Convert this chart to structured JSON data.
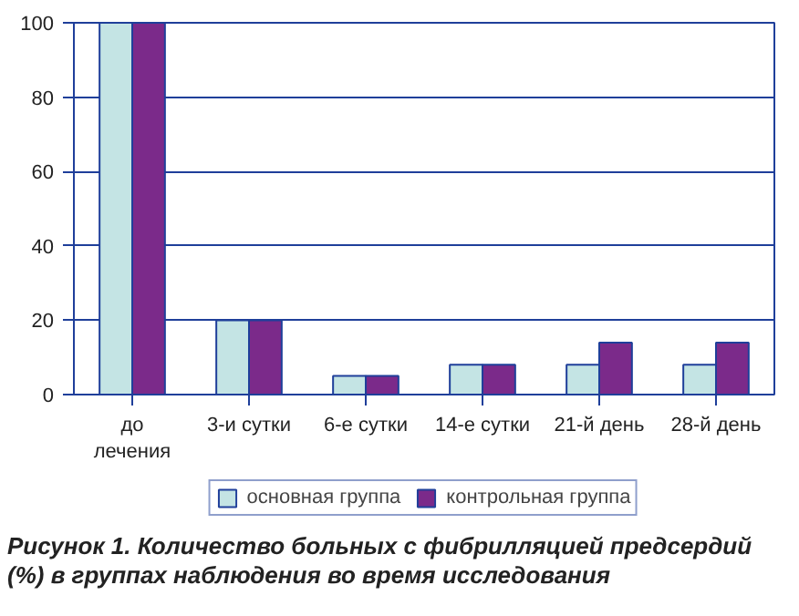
{
  "chart_data": {
    "type": "bar",
    "categories": [
      "до\nлечения",
      "3-и сутки",
      "6-е сутки",
      "14-е сутки",
      "21-й день",
      "28-й день"
    ],
    "series": [
      {
        "name": "основная группа",
        "color": "#c4e4e4",
        "values": [
          100,
          20,
          5,
          8,
          8,
          8
        ]
      },
      {
        "name": "контрольная группа",
        "color": "#7b2a8a",
        "values": [
          100,
          20,
          5,
          8,
          14,
          14
        ]
      }
    ],
    "ylim": [
      0,
      100
    ],
    "yticks": [
      0,
      20,
      40,
      60,
      80,
      100
    ],
    "grid": "y",
    "legend": "bottom",
    "annotations": [
      "Рисунок 1. Количество больных с фибрилляцией предсердий (%) в группах наблюдения во время исследования"
    ]
  }
}
